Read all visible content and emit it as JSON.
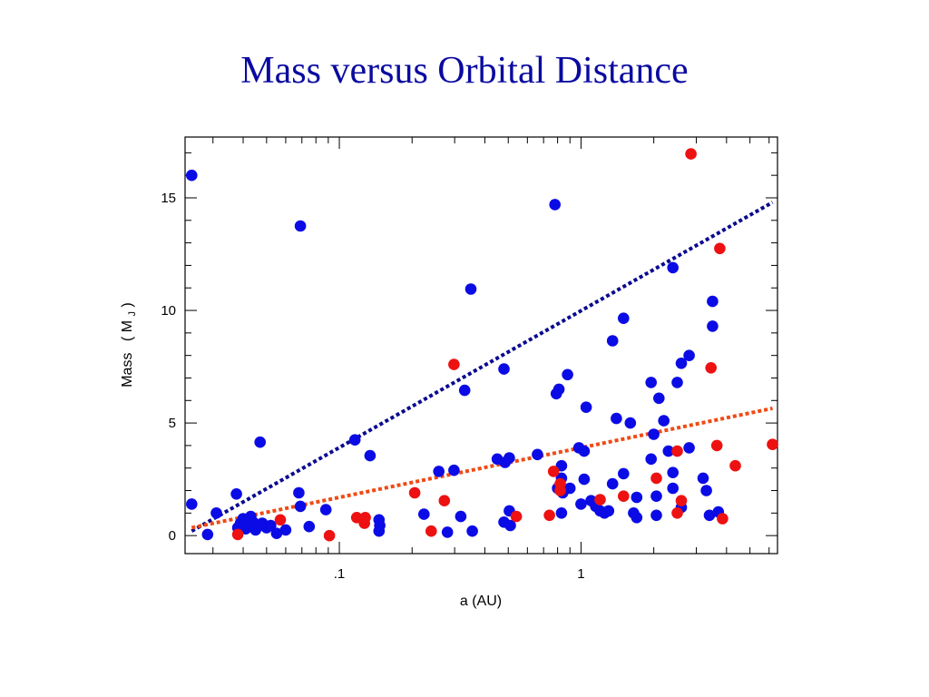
{
  "slide": {
    "title": "Mass versus Orbital Distance"
  },
  "colors": {
    "blue_points": "#0b0be6",
    "red_points": "#ee1111",
    "blue_fit": "#0a0a90",
    "red_fit": "#f04a14"
  },
  "chart_data": {
    "type": "scatter",
    "title": "Mass versus Orbital Distance",
    "xlabel": "a (AU)",
    "ylabel": {
      "text": "Mass",
      "open": "(",
      "main": "M",
      "sub": "J",
      "close": ")"
    },
    "x_scale": "log",
    "xlim": [
      0.023,
      6.5
    ],
    "ylim": [
      -0.8,
      17.7
    ],
    "x_ticks": [
      {
        "value": 0.1,
        "label": ".1"
      },
      {
        "value": 1,
        "label": "1"
      }
    ],
    "y_ticks": [
      {
        "value": 0,
        "label": "0"
      },
      {
        "value": 5,
        "label": "5"
      },
      {
        "value": 10,
        "label": "10"
      },
      {
        "value": 15,
        "label": "15"
      }
    ],
    "series": [
      {
        "color": "#0b0be6",
        "points": [
          [
            0.0245,
            16.0
          ],
          [
            0.0245,
            1.4
          ],
          [
            0.0285,
            0.05
          ],
          [
            0.031,
            1.0
          ],
          [
            0.0375,
            1.85
          ],
          [
            0.038,
            0.35
          ],
          [
            0.039,
            0.55
          ],
          [
            0.04,
            0.75
          ],
          [
            0.041,
            0.3
          ],
          [
            0.042,
            0.5
          ],
          [
            0.043,
            0.85
          ],
          [
            0.044,
            0.6
          ],
          [
            0.045,
            0.25
          ],
          [
            0.046,
            0.4
          ],
          [
            0.047,
            4.15
          ],
          [
            0.048,
            0.55
          ],
          [
            0.05,
            0.35
          ],
          [
            0.052,
            0.45
          ],
          [
            0.055,
            0.1
          ],
          [
            0.06,
            0.25
          ],
          [
            0.069,
            13.75
          ],
          [
            0.068,
            1.9
          ],
          [
            0.069,
            1.3
          ],
          [
            0.075,
            0.4
          ],
          [
            0.088,
            1.15
          ],
          [
            0.116,
            4.25
          ],
          [
            0.134,
            3.55
          ],
          [
            0.146,
            0.7
          ],
          [
            0.146,
            0.2
          ],
          [
            0.147,
            0.45
          ],
          [
            0.224,
            0.95
          ],
          [
            0.258,
            2.85
          ],
          [
            0.28,
            0.15
          ],
          [
            0.298,
            2.9
          ],
          [
            0.318,
            0.85
          ],
          [
            0.33,
            6.45
          ],
          [
            0.35,
            10.95
          ],
          [
            0.355,
            0.2
          ],
          [
            0.45,
            3.4
          ],
          [
            0.48,
            7.4
          ],
          [
            0.48,
            0.6
          ],
          [
            0.485,
            3.25
          ],
          [
            0.505,
            3.45
          ],
          [
            0.505,
            1.1
          ],
          [
            0.51,
            0.45
          ],
          [
            0.66,
            3.6
          ],
          [
            0.78,
            14.7
          ],
          [
            0.79,
            6.3
          ],
          [
            0.8,
            2.1
          ],
          [
            0.81,
            6.5
          ],
          [
            0.83,
            3.1
          ],
          [
            0.83,
            2.55
          ],
          [
            0.84,
            1.9
          ],
          [
            0.83,
            1.0
          ],
          [
            0.88,
            7.15
          ],
          [
            0.9,
            2.1
          ],
          [
            0.98,
            3.9
          ],
          [
            1.0,
            1.4
          ],
          [
            1.05,
            5.7
          ],
          [
            1.03,
            3.75
          ],
          [
            1.03,
            2.5
          ],
          [
            1.1,
            1.55
          ],
          [
            1.15,
            1.3
          ],
          [
            1.2,
            1.1
          ],
          [
            1.25,
            1.0
          ],
          [
            1.3,
            1.1
          ],
          [
            1.35,
            2.3
          ],
          [
            1.35,
            8.65
          ],
          [
            1.4,
            5.2
          ],
          [
            1.5,
            9.65
          ],
          [
            1.5,
            2.75
          ],
          [
            1.6,
            5.0
          ],
          [
            1.65,
            1.0
          ],
          [
            1.7,
            0.8
          ],
          [
            1.7,
            1.7
          ],
          [
            1.95,
            6.8
          ],
          [
            2.0,
            4.5
          ],
          [
            1.95,
            3.4
          ],
          [
            2.1,
            6.1
          ],
          [
            2.05,
            1.75
          ],
          [
            2.05,
            0.9
          ],
          [
            2.2,
            5.1
          ],
          [
            2.3,
            3.75
          ],
          [
            2.4,
            11.9
          ],
          [
            2.4,
            2.8
          ],
          [
            2.4,
            2.1
          ],
          [
            2.5,
            6.8
          ],
          [
            2.6,
            7.65
          ],
          [
            2.6,
            1.25
          ],
          [
            2.8,
            8.0
          ],
          [
            2.8,
            3.9
          ],
          [
            3.2,
            2.55
          ],
          [
            3.3,
            2.0
          ],
          [
            3.4,
            0.9
          ],
          [
            3.5,
            10.4
          ],
          [
            3.5,
            9.3
          ],
          [
            3.7,
            1.05
          ]
        ]
      },
      {
        "color": "#ee1111",
        "points": [
          [
            0.038,
            0.05
          ],
          [
            0.057,
            0.7
          ],
          [
            0.091,
            0.0
          ],
          [
            0.118,
            0.8
          ],
          [
            0.127,
            0.55
          ],
          [
            0.128,
            0.8
          ],
          [
            0.205,
            1.9
          ],
          [
            0.24,
            0.2
          ],
          [
            0.272,
            1.55
          ],
          [
            0.298,
            7.6
          ],
          [
            0.54,
            0.85
          ],
          [
            0.74,
            0.9
          ],
          [
            0.77,
            2.85
          ],
          [
            0.82,
            2.3
          ],
          [
            0.82,
            2.0
          ],
          [
            1.2,
            1.6
          ],
          [
            1.5,
            1.75
          ],
          [
            2.05,
            2.55
          ],
          [
            2.5,
            3.75
          ],
          [
            2.5,
            1.0
          ],
          [
            2.6,
            1.55
          ],
          [
            2.85,
            16.95
          ],
          [
            3.45,
            7.45
          ],
          [
            3.65,
            4.0
          ],
          [
            3.75,
            12.75
          ],
          [
            3.85,
            0.75
          ],
          [
            4.35,
            3.1
          ],
          [
            6.2,
            4.05
          ]
        ]
      }
    ],
    "trend_lines": [
      {
        "color": "#0a0a90",
        "from": [
          0.0245,
          0.2
        ],
        "to": [
          6.2,
          14.8
        ]
      },
      {
        "color": "#f04a14",
        "from": [
          0.0245,
          0.35
        ],
        "to": [
          6.2,
          5.65
        ]
      }
    ]
  }
}
